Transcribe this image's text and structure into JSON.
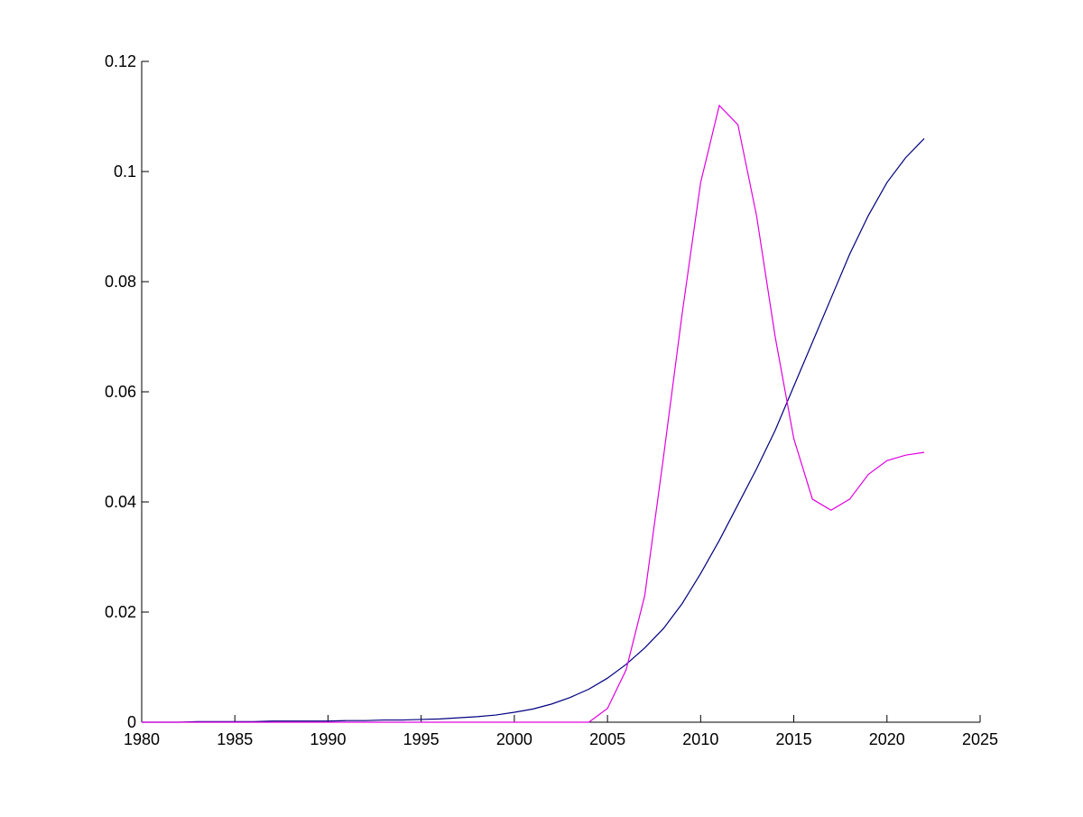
{
  "chart_data": {
    "type": "line",
    "x": [
      1980,
      1981,
      1982,
      1983,
      1984,
      1985,
      1986,
      1987,
      1988,
      1989,
      1990,
      1991,
      1992,
      1993,
      1994,
      1995,
      1996,
      1997,
      1998,
      1999,
      2000,
      2001,
      2002,
      2003,
      2004,
      2005,
      2006,
      2007,
      2008,
      2009,
      2010,
      2011,
      2012,
      2013,
      2014,
      2015,
      2016,
      2017,
      2018,
      2019,
      2020,
      2021,
      2022
    ],
    "series": [
      {
        "color": "#00007f",
        "values": [
          0,
          0,
          0,
          0.0001,
          0.0001,
          0.0001,
          0.0001,
          0.0002,
          0.0002,
          0.0002,
          0.0002,
          0.0003,
          0.0003,
          0.0004,
          0.0004,
          0.0005,
          0.0006,
          0.0008,
          0.001,
          0.0013,
          0.0018,
          0.0024,
          0.0033,
          0.0045,
          0.006,
          0.008,
          0.0105,
          0.0135,
          0.017,
          0.0215,
          0.027,
          0.033,
          0.0395,
          0.046,
          0.053,
          0.061,
          0.069,
          0.077,
          0.085,
          0.092,
          0.098,
          0.1025,
          0.106
        ]
      },
      {
        "color": "#e000e0",
        "values": [
          0,
          0,
          0,
          0,
          0,
          0,
          0,
          0,
          0,
          0,
          0,
          0,
          0,
          0,
          0,
          0,
          0,
          0,
          0,
          0,
          0,
          0,
          0,
          0,
          0,
          0.0025,
          0.0095,
          0.023,
          0.048,
          0.074,
          0.098,
          0.112,
          0.1085,
          0.092,
          0.07,
          0.0515,
          0.0405,
          0.0385,
          0.0405,
          0.045,
          0.0475,
          0.0485,
          0.049
        ]
      }
    ],
    "xlim": [
      1980,
      2025
    ],
    "xticks": [
      1980,
      1985,
      1990,
      1995,
      2000,
      2005,
      2010,
      2015,
      2020,
      2025
    ],
    "ylim": [
      0,
      0.12
    ],
    "yticks": [
      0,
      0.02,
      0.04,
      0.06,
      0.08,
      0.1,
      0.12
    ]
  }
}
